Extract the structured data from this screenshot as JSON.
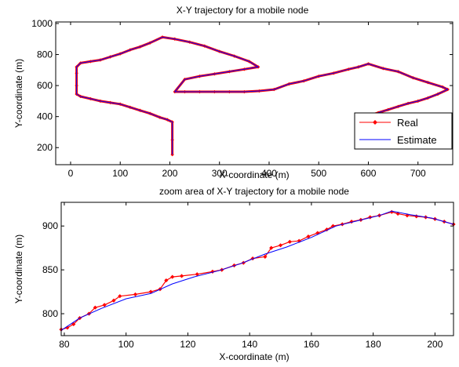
{
  "chart_data": [
    {
      "type": "line",
      "title": "X-Y trajectory for a mobile node",
      "xlabel": "X-coordinate (m)",
      "ylabel": "Y-coordinate (m)",
      "xlim": [
        -30,
        770
      ],
      "ylim": [
        90,
        1010
      ],
      "xticks": [
        0,
        100,
        200,
        300,
        400,
        500,
        600,
        700
      ],
      "yticks": [
        200,
        400,
        600,
        800,
        1000
      ],
      "grid": false,
      "legend": "bottom-right",
      "series": [
        {
          "name": "Real",
          "color": "#ff0000",
          "marker": "point",
          "x": [
            205,
            205,
            205,
            195,
            180,
            160,
            140,
            120,
            100,
            80,
            60,
            40,
            20,
            12,
            12,
            12,
            12,
            20,
            40,
            60,
            80,
            100,
            120,
            140,
            160,
            185,
            210,
            240,
            270,
            300,
            330,
            360,
            378,
            350,
            320,
            290,
            260,
            230,
            210,
            230,
            260,
            290,
            320,
            350,
            380,
            410,
            440,
            470,
            500,
            530,
            560,
            580,
            600,
            630,
            660,
            690,
            720,
            750,
            760,
            740,
            720,
            700,
            680,
            660,
            640,
            620,
            595
          ],
          "y": [
            155,
            250,
            365,
            380,
            395,
            420,
            440,
            460,
            480,
            490,
            500,
            515,
            530,
            545,
            600,
            680,
            720,
            745,
            755,
            765,
            785,
            805,
            830,
            850,
            875,
            912,
            900,
            880,
            855,
            820,
            790,
            755,
            720,
            705,
            690,
            675,
            660,
            640,
            560,
            560,
            560,
            560,
            560,
            560,
            565,
            575,
            610,
            630,
            660,
            680,
            705,
            720,
            740,
            710,
            690,
            650,
            620,
            590,
            575,
            545,
            520,
            500,
            485,
            465,
            445,
            425,
            400
          ]
        },
        {
          "name": "Estimate",
          "color": "#0000ff",
          "marker": "none",
          "x": [
            205,
            205,
            205,
            195,
            180,
            160,
            140,
            120,
            100,
            80,
            60,
            40,
            20,
            12,
            12,
            12,
            12,
            20,
            40,
            60,
            80,
            100,
            120,
            140,
            160,
            185,
            210,
            240,
            270,
            300,
            330,
            360,
            378,
            350,
            320,
            290,
            260,
            230,
            210,
            230,
            260,
            290,
            320,
            350,
            380,
            410,
            440,
            470,
            500,
            530,
            560,
            580,
            600,
            630,
            660,
            690,
            720,
            750,
            760,
            740,
            720,
            700,
            680,
            660,
            640,
            620,
            595
          ],
          "y": [
            155,
            250,
            365,
            380,
            395,
            420,
            440,
            460,
            480,
            490,
            500,
            515,
            530,
            545,
            600,
            680,
            720,
            745,
            755,
            765,
            785,
            805,
            830,
            850,
            875,
            912,
            900,
            880,
            855,
            820,
            790,
            755,
            720,
            705,
            690,
            675,
            660,
            640,
            560,
            560,
            560,
            560,
            560,
            560,
            565,
            575,
            610,
            630,
            660,
            680,
            705,
            720,
            740,
            710,
            690,
            650,
            620,
            590,
            575,
            545,
            520,
            500,
            485,
            465,
            445,
            425,
            400
          ]
        }
      ]
    },
    {
      "type": "line",
      "title": "zoom area of X-Y trajectory for a mobile node",
      "xlabel": "X-coordinate (m)",
      "ylabel": "Y-coordinate (m)",
      "xlim": [
        79,
        206
      ],
      "ylim": [
        775,
        927
      ],
      "xticks": [
        80,
        100,
        120,
        140,
        160,
        180,
        200
      ],
      "yticks": [
        800,
        850,
        900
      ],
      "grid": false,
      "series": [
        {
          "name": "Real",
          "color": "#ff0000",
          "marker": "point",
          "x": [
            79,
            81,
            83,
            85,
            88,
            90,
            93,
            96,
            98,
            103,
            108,
            111,
            113,
            115,
            118,
            123,
            128,
            131,
            135,
            138,
            141,
            145,
            147,
            150,
            153,
            156,
            159,
            162,
            165,
            167,
            170,
            173,
            176,
            179,
            182,
            186,
            188,
            191,
            194,
            197,
            200,
            203,
            206
          ],
          "y": [
            782,
            784,
            788,
            795,
            800,
            807,
            810,
            815,
            820,
            822,
            825,
            828,
            838,
            842,
            843,
            845,
            848,
            850,
            855,
            858,
            863,
            865,
            875,
            878,
            882,
            883,
            888,
            892,
            896,
            900,
            902,
            905,
            907,
            910,
            912,
            916,
            914,
            912,
            911,
            910,
            908,
            905,
            902
          ]
        },
        {
          "name": "Estimate",
          "color": "#0000ff",
          "marker": "none",
          "x": [
            79,
            85,
            92,
            100,
            108,
            115,
            122,
            130,
            137,
            145,
            152,
            160,
            168,
            175,
            182,
            186,
            192,
            199,
            206
          ],
          "y": [
            781,
            795,
            806,
            817,
            823,
            834,
            842,
            849,
            857,
            868,
            876,
            887,
            900,
            906,
            912,
            917,
            913,
            909,
            902
          ]
        }
      ]
    }
  ]
}
